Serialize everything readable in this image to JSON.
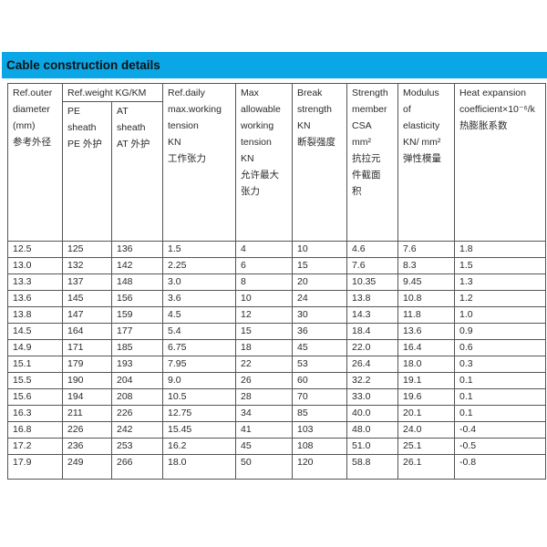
{
  "title": "Cable construction details",
  "headers": {
    "outer_diameter": "Ref.outer\ndiameter\n(mm)\n参考外径",
    "weight_group": "Ref.weight KG/KM",
    "pe_sheath": "PE\nsheath\nPE 外护",
    "at_sheath": "AT\nsheath\nAT 外护",
    "daily_tension": "Ref.daily\nmax.working\ntension\nKN\n工作张力",
    "max_tension": "Max\nallowable\nworking\ntension\nKN\n允许最大\n张力",
    "break_strength": "Break\nstrength\nKN\n断裂强度",
    "strength_member": "Strength\nmember\nCSA\nmm²\n抗拉元\n件截面\n积",
    "modulus": "Modulus\nof\nelasticity\nKN/ mm²\n弹性模量",
    "heat_expansion": "Heat expansion\ncoefficient×10⁻⁶/k\n热膨胀系数"
  },
  "rows": [
    [
      "12.5",
      "125",
      "136",
      "1.5",
      "4",
      "10",
      "4.6",
      "7.6",
      "1.8"
    ],
    [
      "13.0",
      "132",
      "142",
      "2.25",
      "6",
      "15",
      "7.6",
      "8.3",
      "1.5"
    ],
    [
      "13.3",
      "137",
      "148",
      "3.0",
      "8",
      "20",
      "10.35",
      "9.45",
      "1.3"
    ],
    [
      "13.6",
      "145",
      "156",
      "3.6",
      "10",
      "24",
      "13.8",
      "10.8",
      "1.2"
    ],
    [
      "13.8",
      "147",
      "159",
      "4.5",
      "12",
      "30",
      "14.3",
      "11.8",
      "1.0"
    ],
    [
      "14.5",
      "164",
      "177",
      "5.4",
      "15",
      "36",
      "18.4",
      "13.6",
      "0.9"
    ],
    [
      "14.9",
      "171",
      "185",
      "6.75",
      "18",
      "45",
      "22.0",
      "16.4",
      "0.6"
    ],
    [
      "15.1",
      "179",
      "193",
      "7.95",
      "22",
      "53",
      "26.4",
      "18.0",
      "0.3"
    ],
    [
      "15.5",
      "190",
      "204",
      "9.0",
      "26",
      "60",
      "32.2",
      "19.1",
      "0.1"
    ],
    [
      "15.6",
      "194",
      "208",
      "10.5",
      "28",
      "70",
      "33.0",
      "19.6",
      "0.1"
    ],
    [
      "16.3",
      "211",
      "226",
      "12.75",
      "34",
      "85",
      "40.0",
      "20.1",
      "0.1"
    ],
    [
      "16.8",
      "226",
      "242",
      "15.45",
      "41",
      "103",
      "48.0",
      "24.0",
      "-0.4"
    ],
    [
      "17.2",
      "236",
      "253",
      "16.2",
      "45",
      "108",
      "51.0",
      "25.1",
      "-0.5"
    ],
    [
      "17.9",
      "249",
      "266",
      "18.0",
      "50",
      "120",
      "58.8",
      "26.1",
      "-0.8"
    ]
  ],
  "colors": {
    "banner": "#0aa6e6"
  }
}
